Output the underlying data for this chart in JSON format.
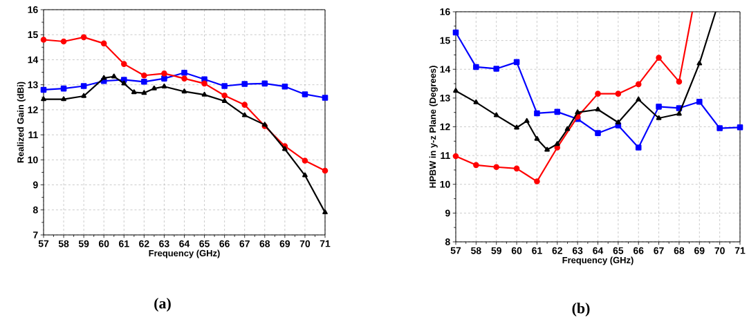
{
  "chart_data": [
    {
      "type": "line",
      "xlabel": "Frequency (GHz)",
      "ylabel": "Realized Gain (dBi)",
      "annotations": [
        "(a)"
      ],
      "xlim": [
        57,
        71
      ],
      "ylim": [
        7,
        16
      ],
      "xticks": [
        57,
        58,
        59,
        60,
        61,
        62,
        63,
        64,
        65,
        66,
        67,
        68,
        69,
        70,
        71
      ],
      "yticks": [
        7,
        8,
        9,
        10,
        11,
        12,
        13,
        14,
        15,
        16
      ],
      "grid": true,
      "line_style": "solid",
      "series": [
        {
          "color": "#0000ff",
          "marker": "square",
          "x": [
            57,
            58,
            59,
            60,
            61,
            62,
            63,
            64,
            65,
            66,
            67,
            68,
            69,
            70,
            71
          ],
          "values": [
            12.8,
            12.85,
            12.95,
            13.15,
            13.2,
            13.12,
            13.25,
            13.48,
            13.22,
            12.95,
            13.03,
            13.05,
            12.93,
            12.62,
            12.48
          ]
        },
        {
          "color": "#ff0000",
          "marker": "circle",
          "x": [
            57,
            58,
            59,
            60,
            61,
            62,
            63,
            64,
            65,
            66,
            67,
            68,
            69,
            70,
            71
          ],
          "values": [
            14.8,
            14.73,
            14.9,
            14.65,
            13.83,
            13.37,
            13.45,
            13.25,
            13.05,
            12.57,
            12.2,
            11.35,
            10.55,
            9.97,
            9.57
          ]
        },
        {
          "color": "#000000",
          "marker": "triangle",
          "x": [
            57,
            58,
            59,
            60,
            60.5,
            61,
            61.5,
            62,
            62.5,
            63,
            64,
            65,
            66,
            67,
            68,
            69,
            70,
            71
          ],
          "values": [
            12.42,
            12.42,
            12.55,
            13.27,
            13.33,
            13.05,
            12.7,
            12.67,
            12.85,
            12.93,
            12.73,
            12.6,
            12.35,
            11.78,
            11.4,
            10.43,
            9.38,
            7.9
          ]
        }
      ]
    },
    {
      "type": "line",
      "xlabel": "Frequency (GHz)",
      "ylabel": "HPBW in y-z Plane (Degrees)",
      "annotations": [
        "(b)"
      ],
      "xlim": [
        57,
        71
      ],
      "ylim": [
        8,
        16
      ],
      "xticks": [
        57,
        58,
        59,
        60,
        61,
        62,
        63,
        64,
        65,
        66,
        67,
        68,
        69,
        70,
        71
      ],
      "yticks": [
        8,
        9,
        10,
        11,
        12,
        13,
        14,
        15,
        16
      ],
      "grid": true,
      "line_style": "solid",
      "series": [
        {
          "color": "#0000ff",
          "marker": "square",
          "x": [
            57,
            58,
            59,
            60,
            61,
            62,
            63,
            64,
            65,
            66,
            67,
            68,
            69,
            70,
            71
          ],
          "values": [
            15.28,
            14.08,
            14.02,
            14.25,
            12.47,
            12.52,
            12.27,
            11.78,
            12.05,
            11.28,
            12.7,
            12.65,
            12.87,
            11.95,
            11.98
          ]
        },
        {
          "color": "#ff0000",
          "marker": "circle",
          "x": [
            57,
            58,
            59,
            60,
            61,
            62,
            63,
            64,
            65,
            66,
            67,
            68,
            68.65
          ],
          "values": [
            10.98,
            10.67,
            10.6,
            10.55,
            10.1,
            11.28,
            12.35,
            13.15,
            13.15,
            13.48,
            14.4,
            13.57,
            16
          ]
        },
        {
          "color": "#000000",
          "marker": "triangle",
          "x": [
            57,
            58,
            59,
            60,
            60.5,
            61,
            61.5,
            62,
            62.5,
            63,
            64,
            65,
            66,
            67,
            68,
            69,
            69.8
          ],
          "values": [
            13.25,
            12.85,
            12.4,
            11.97,
            12.2,
            11.58,
            11.2,
            11.4,
            11.92,
            12.5,
            12.6,
            12.15,
            12.95,
            12.3,
            12.45,
            14.2,
            16
          ]
        }
      ]
    }
  ]
}
